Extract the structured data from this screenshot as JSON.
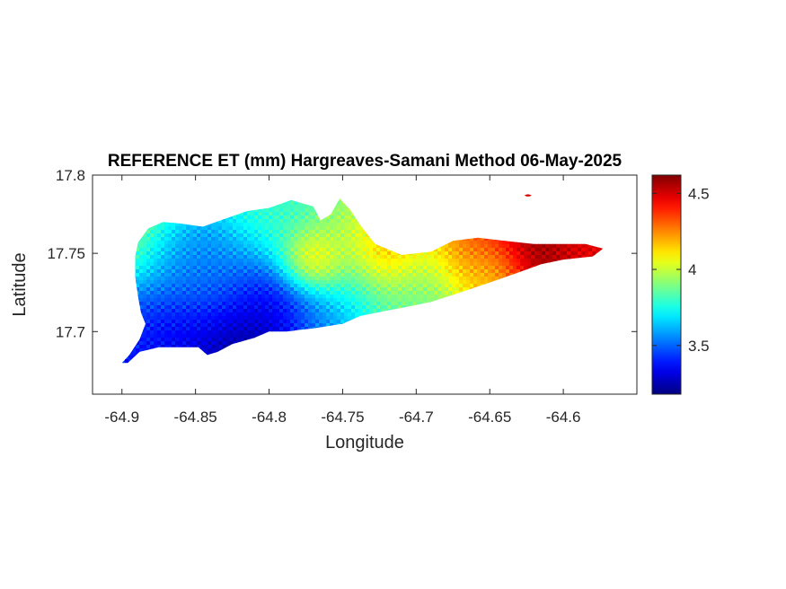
{
  "chart_data": {
    "type": "heatmap",
    "title": "REFERENCE ET (mm) Hargreaves-Samani Method  06-May-2025",
    "xlabel": "Longitude",
    "ylabel": "Latitude",
    "xlim": [
      -64.92,
      -64.55
    ],
    "ylim": [
      17.66,
      17.8
    ],
    "xticks": [
      -64.9,
      -64.85,
      -64.8,
      -64.75,
      -64.7,
      -64.65,
      -64.6
    ],
    "xtick_labels": [
      "-64.9",
      "-64.85",
      "-64.8",
      "-64.75",
      "-64.7",
      "-64.65",
      "-64.6"
    ],
    "yticks": [
      17.7,
      17.75,
      17.8
    ],
    "ytick_labels": [
      "17.7",
      "17.75",
      "17.8"
    ],
    "colorbar": {
      "colormap": "jet",
      "clim": [
        3.18,
        4.62
      ],
      "ticks": [
        3.5,
        4,
        4.5
      ],
      "tick_labels": [
        "3.5",
        "4",
        "4.5"
      ]
    },
    "grid": false,
    "outline": [
      [
        -64.9,
        17.68
      ],
      [
        -64.895,
        17.685
      ],
      [
        -64.888,
        17.695
      ],
      [
        -64.884,
        17.705
      ],
      [
        -64.887,
        17.712
      ],
      [
        -64.889,
        17.722
      ],
      [
        -64.891,
        17.735
      ],
      [
        -64.891,
        17.748
      ],
      [
        -64.889,
        17.757
      ],
      [
        -64.882,
        17.766
      ],
      [
        -64.872,
        17.77
      ],
      [
        -64.86,
        17.769
      ],
      [
        -64.845,
        17.767
      ],
      [
        -64.83,
        17.772
      ],
      [
        -64.815,
        17.777
      ],
      [
        -64.8,
        17.779
      ],
      [
        -64.785,
        17.784
      ],
      [
        -64.77,
        17.78
      ],
      [
        -64.765,
        17.771
      ],
      [
        -64.758,
        17.775
      ],
      [
        -64.752,
        17.785
      ],
      [
        -64.745,
        17.778
      ],
      [
        -64.738,
        17.768
      ],
      [
        -64.728,
        17.756
      ],
      [
        -64.71,
        17.749
      ],
      [
        -64.69,
        17.751
      ],
      [
        -64.675,
        17.758
      ],
      [
        -64.658,
        17.76
      ],
      [
        -64.64,
        17.758
      ],
      [
        -64.62,
        17.756
      ],
      [
        -64.6,
        17.756
      ],
      [
        -64.585,
        17.756
      ],
      [
        -64.573,
        17.753
      ],
      [
        -64.58,
        17.748
      ],
      [
        -64.6,
        17.746
      ],
      [
        -64.615,
        17.743
      ],
      [
        -64.63,
        17.738
      ],
      [
        -64.648,
        17.732
      ],
      [
        -64.67,
        17.725
      ],
      [
        -64.69,
        17.719
      ],
      [
        -64.705,
        17.716
      ],
      [
        -64.722,
        17.713
      ],
      [
        -64.738,
        17.71
      ],
      [
        -64.75,
        17.705
      ],
      [
        -64.77,
        17.702
      ],
      [
        -64.78,
        17.701
      ],
      [
        -64.788,
        17.7
      ],
      [
        -64.8,
        17.7
      ],
      [
        -64.81,
        17.696
      ],
      [
        -64.825,
        17.692
      ],
      [
        -64.835,
        17.687
      ],
      [
        -64.842,
        17.685
      ],
      [
        -64.848,
        17.69
      ],
      [
        -64.86,
        17.69
      ],
      [
        -64.875,
        17.69
      ],
      [
        -64.888,
        17.687
      ],
      [
        -64.896,
        17.68
      ]
    ],
    "islet": {
      "lon": -64.624,
      "lat": 17.787,
      "value": 4.5
    },
    "hotspots": [
      {
        "lon": -64.905,
        "lat": 17.768,
        "value": 3.95,
        "spread": 0.03
      },
      {
        "lon": -64.855,
        "lat": 17.745,
        "value": 3.5,
        "spread": 0.022
      },
      {
        "lon": -64.9,
        "lat": 17.705,
        "value": 3.4,
        "spread": 0.02
      },
      {
        "lon": -64.815,
        "lat": 17.703,
        "value": 3.15,
        "spread": 0.026
      },
      {
        "lon": -64.79,
        "lat": 17.712,
        "value": 3.4,
        "spread": 0.02
      },
      {
        "lon": -64.86,
        "lat": 17.696,
        "value": 3.35,
        "spread": 0.02
      },
      {
        "lon": -64.79,
        "lat": 17.77,
        "value": 3.8,
        "spread": 0.028
      },
      {
        "lon": -64.835,
        "lat": 17.73,
        "value": 3.6,
        "spread": 0.02
      },
      {
        "lon": -64.77,
        "lat": 17.744,
        "value": 4.35,
        "spread": 0.013
      },
      {
        "lon": -64.745,
        "lat": 17.728,
        "value": 3.75,
        "spread": 0.02
      },
      {
        "lon": -64.745,
        "lat": 17.762,
        "value": 4.0,
        "spread": 0.018
      },
      {
        "lon": -64.72,
        "lat": 17.752,
        "value": 4.35,
        "spread": 0.016
      },
      {
        "lon": -64.695,
        "lat": 17.74,
        "value": 3.95,
        "spread": 0.02
      },
      {
        "lon": -64.7,
        "lat": 17.72,
        "value": 3.85,
        "spread": 0.018
      },
      {
        "lon": -64.665,
        "lat": 17.752,
        "value": 4.35,
        "spread": 0.018
      },
      {
        "lon": -64.62,
        "lat": 17.751,
        "value": 4.6,
        "spread": 0.022
      },
      {
        "lon": -64.65,
        "lat": 17.735,
        "value": 4.05,
        "spread": 0.015
      },
      {
        "lon": -64.585,
        "lat": 17.752,
        "value": 4.45,
        "spread": 0.016
      },
      {
        "lon": -64.765,
        "lat": 17.705,
        "value": 3.6,
        "spread": 0.015
      }
    ]
  },
  "colors": {
    "background": "#ffffff",
    "axes": "#262626",
    "title": "#000000"
  }
}
